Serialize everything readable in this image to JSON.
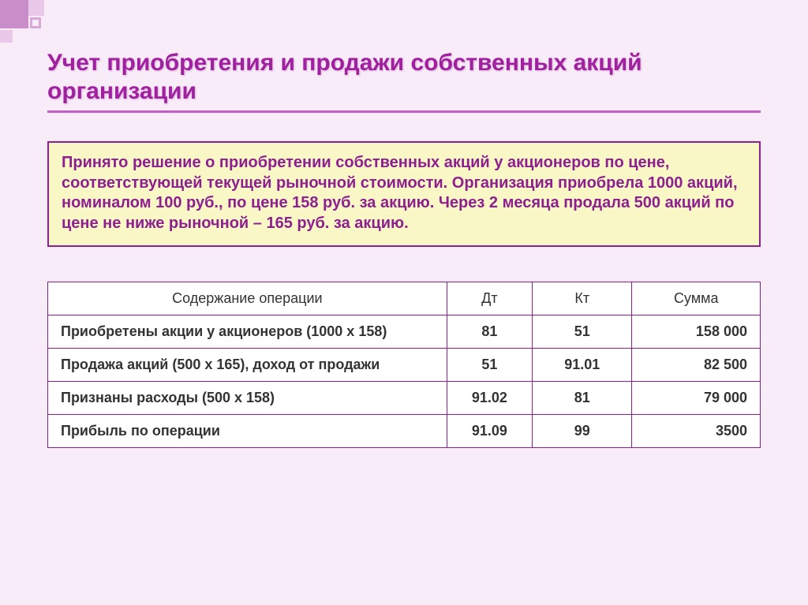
{
  "title": "Учет приобретения и продажи собственных акций организации",
  "info_box": "Принято решение о приобретении собственных акций у акционеров по цене, соответствующей текущей рыночной стоимости. Организация приобрела 1000 акций, номиналом 100 руб., по цене 158 руб. за акцию. Через 2 месяца продала 500 акций по цене не ниже рыночной – 165 руб. за акцию.",
  "table": {
    "columns": [
      "Содержание операции",
      "Дт",
      "Кт",
      "Сумма"
    ],
    "rows": [
      {
        "op": "Приобретены акции у акционеров (1000 х 158)",
        "dt": "81",
        "kt": "51",
        "sum": "158 000"
      },
      {
        "op": "Продажа акций (500 х 165), доход от продажи",
        "dt": "51",
        "kt": "91.01",
        "sum": "82 500"
      },
      {
        "op": "Признаны расходы (500 х 158)",
        "dt": "91.02",
        "kt": "81",
        "sum": "79 000"
      },
      {
        "op": "Прибыль по операции",
        "dt": "91.09",
        "kt": "99",
        "sum": "3500"
      }
    ]
  },
  "colors": {
    "page_bg": "#f8ecf8",
    "title_color": "#a020a0",
    "accent_border": "#8e1f8e",
    "info_bg": "#f9f7c6",
    "underline": "#c060c0"
  }
}
